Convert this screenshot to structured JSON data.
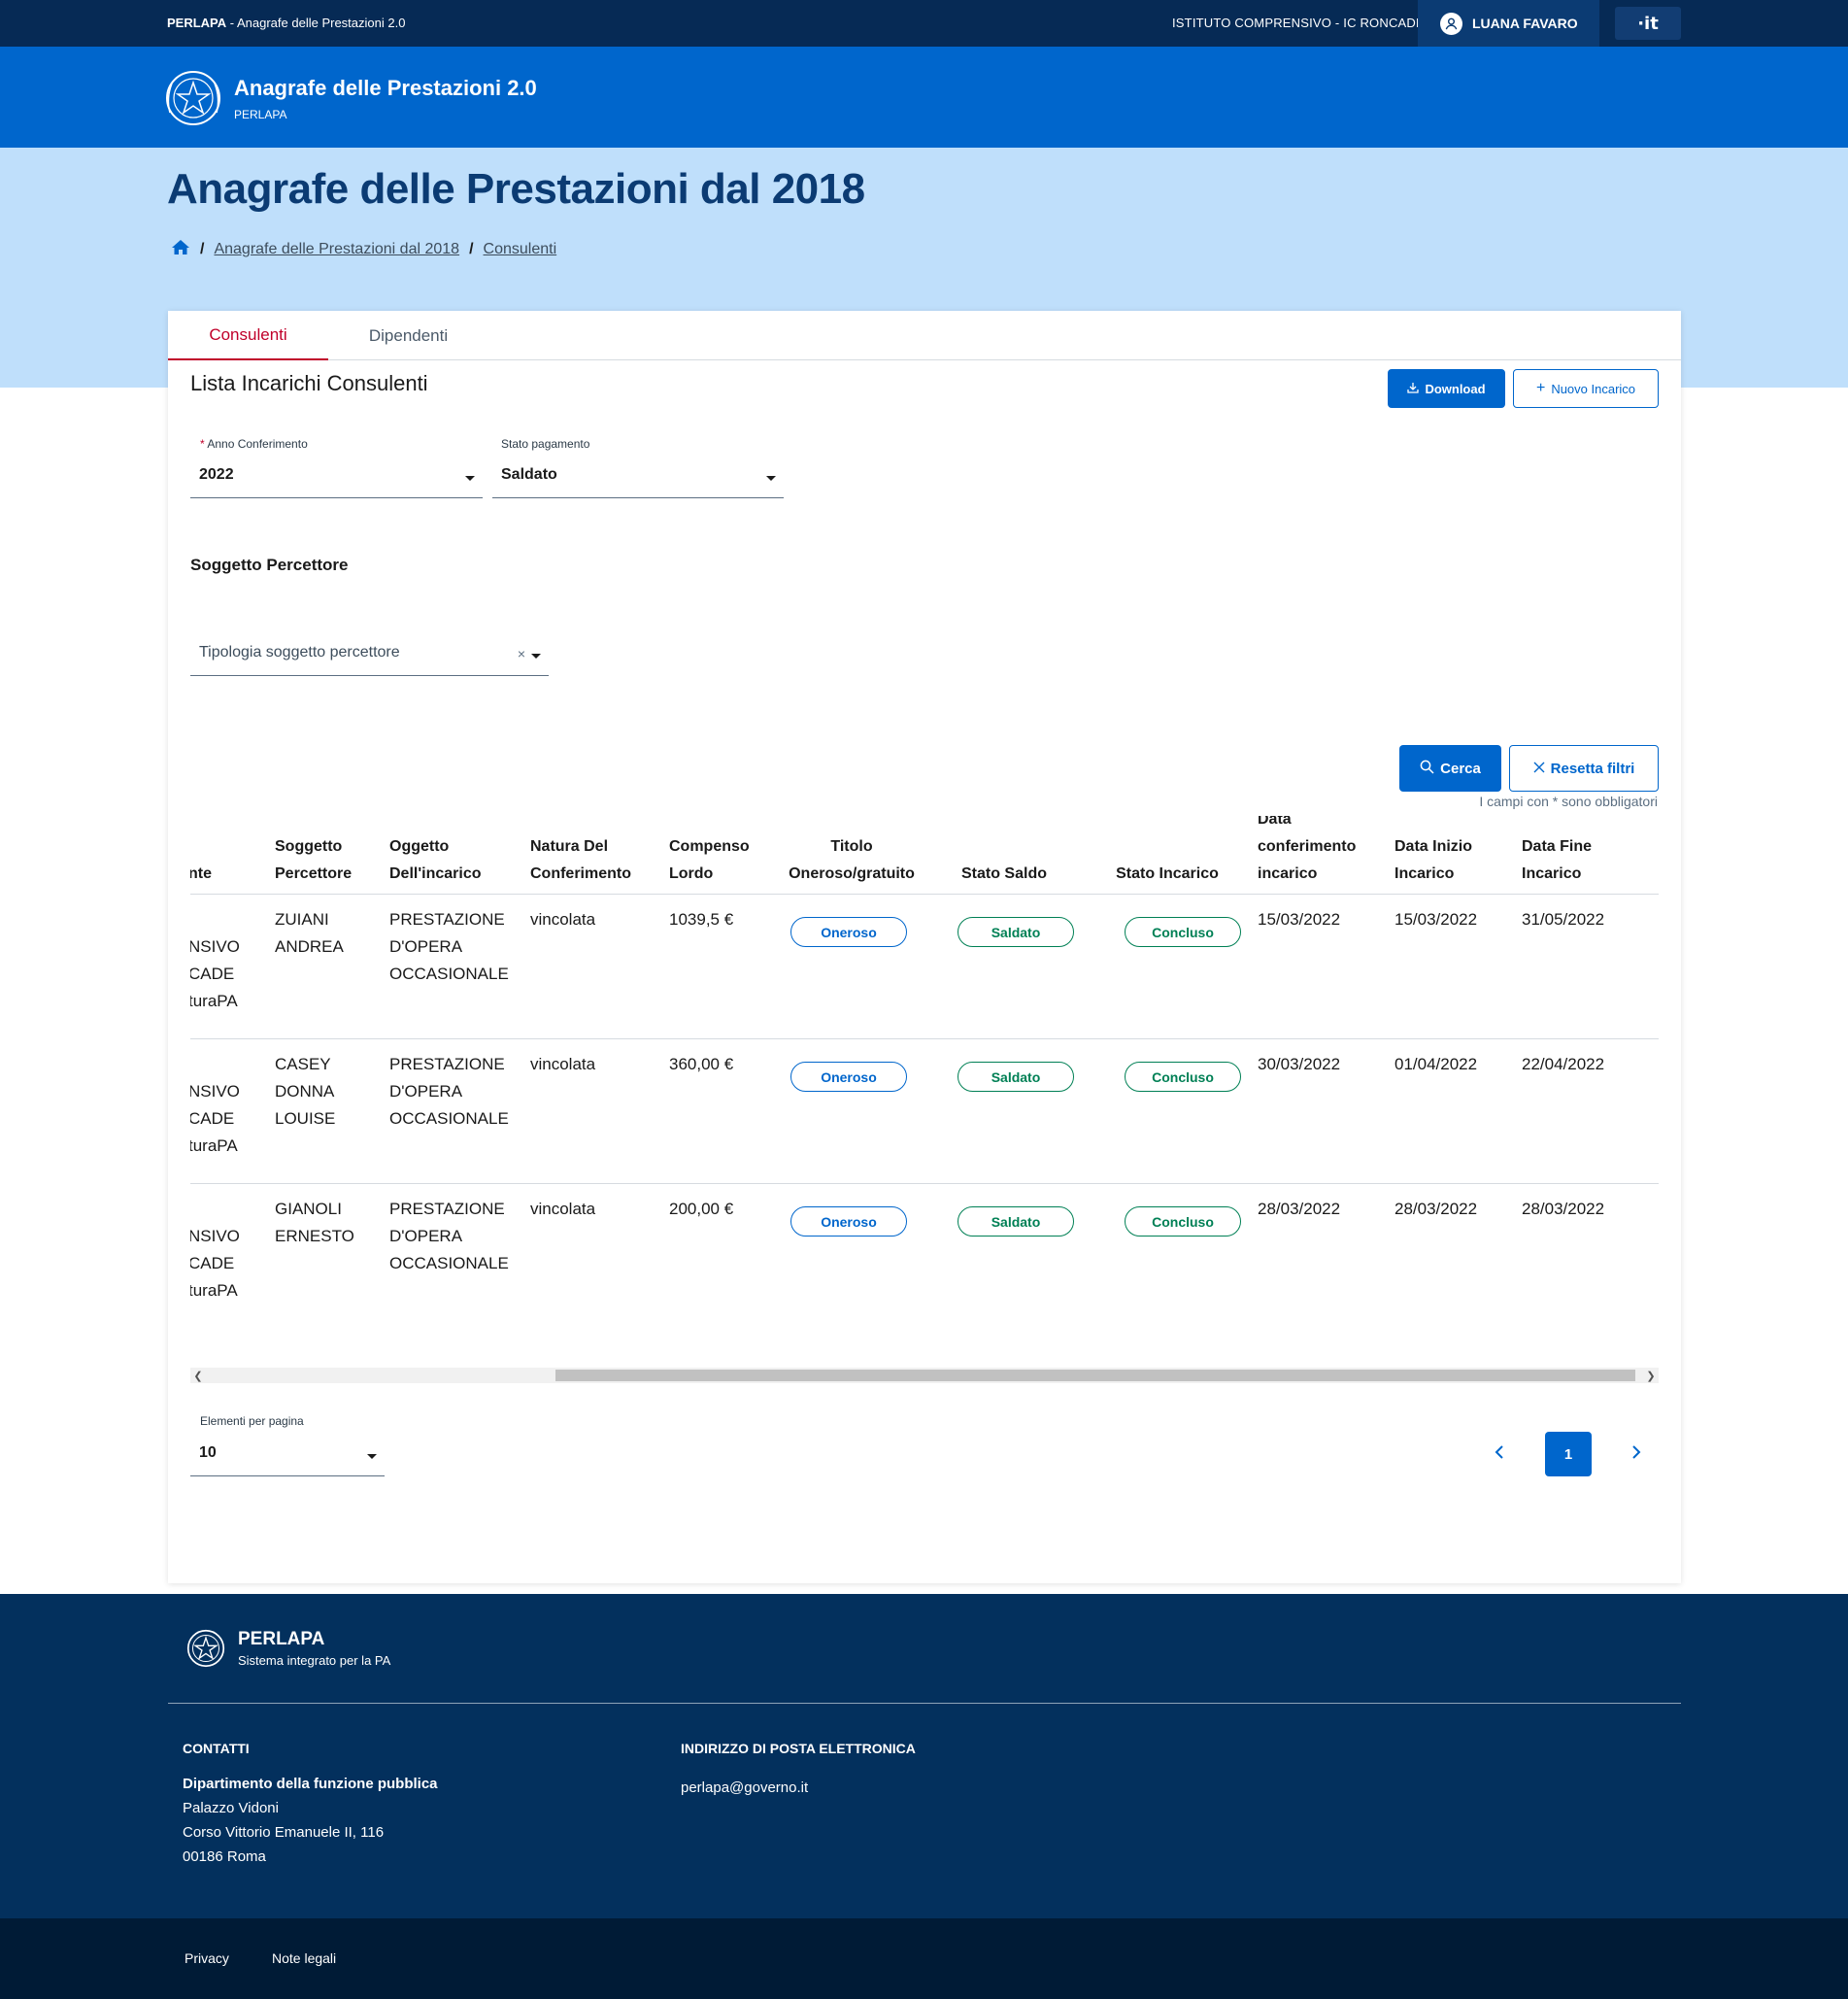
{
  "slimbar": {
    "brand_bold": "PERLAPA",
    "brand_rest": " - Anagrafe delle Prestazioni 2.0",
    "institute": "ISTITUTO COMPRENSIVO - IC RONCADE",
    "user_name": "LUANA FAVARO",
    "lang": "·it"
  },
  "header": {
    "title": "Anagrafe delle Prestazioni 2.0",
    "subtitle": "PERLAPA"
  },
  "page": {
    "title": "Anagrafe delle Prestazioni dal 2018",
    "breadcrumb": [
      "Anagrafe delle Prestazioni dal 2018",
      "Consulenti"
    ],
    "breadcrumb_sep": "/"
  },
  "tabs": [
    "Consulenti",
    "Dipendenti"
  ],
  "list": {
    "title": "Lista Incarichi Consulenti",
    "download_label": "Download",
    "new_label": "Nuovo Incarico"
  },
  "filters": {
    "anno_label": "Anno Conferimento",
    "anno_value": "2022",
    "stato_label": "Stato pagamento",
    "stato_value": "Saldato",
    "soggetto_section": "Soggetto Percettore",
    "tipologia_placeholder": "Tipologia soggetto percettore",
    "search_label": "Cerca",
    "reset_label": "Resetta filtri",
    "required_note": "I campi con * sono obbligatori"
  },
  "table": {
    "headers": [
      [
        "",
        "nte"
      ],
      [
        "Soggetto",
        "Percettore"
      ],
      [
        "Oggetto",
        "Dell'incarico"
      ],
      [
        "Natura Del",
        "Conferimento"
      ],
      [
        "Compenso",
        "Lordo"
      ],
      [
        "Titolo",
        "Oneroso/gratuito"
      ],
      [
        "Stato Saldo"
      ],
      [
        "Stato Incarico"
      ],
      [
        "Data",
        "conferimento",
        "incarico"
      ],
      [
        "Data Inizio",
        "Incarico"
      ],
      [
        "Data Fine",
        "Incarico"
      ]
    ],
    "rows": [
      {
        "ente": [
          "",
          "NSIVO",
          "CADE",
          "turaPA"
        ],
        "soggetto": [
          "ZUIANI",
          "ANDREA"
        ],
        "oggetto": [
          "PRESTAZIONE",
          "D'OPERA",
          "OCCASIONALE"
        ],
        "natura": "vincolata",
        "compenso": "1039,5 €",
        "titolo": "Oneroso",
        "stato_saldo": "Saldato",
        "stato_incarico": "Concluso",
        "data_conferimento": "15/03/2022",
        "data_inizio": "15/03/2022",
        "data_fine": "31/05/2022"
      },
      {
        "ente": [
          "",
          "NSIVO",
          "CADE",
          "turaPA"
        ],
        "soggetto": [
          "CASEY",
          "DONNA",
          "LOUISE"
        ],
        "oggetto": [
          "PRESTAZIONE",
          "D'OPERA",
          "OCCASIONALE"
        ],
        "natura": "vincolata",
        "compenso": "360,00 €",
        "titolo": "Oneroso",
        "stato_saldo": "Saldato",
        "stato_incarico": "Concluso",
        "data_conferimento": "30/03/2022",
        "data_inizio": "01/04/2022",
        "data_fine": "22/04/2022"
      },
      {
        "ente": [
          "",
          "NSIVO",
          "CADE",
          "turaPA"
        ],
        "soggetto": [
          "GIANOLI",
          "ERNESTO"
        ],
        "oggetto": [
          "PRESTAZIONE",
          "D'OPERA",
          "OCCASIONALE"
        ],
        "natura": "vincolata",
        "compenso": "200,00 €",
        "titolo": "Oneroso",
        "stato_saldo": "Saldato",
        "stato_incarico": "Concluso",
        "data_conferimento": "28/03/2022",
        "data_inizio": "28/03/2022",
        "data_fine": "28/03/2022"
      }
    ]
  },
  "pagination": {
    "per_page_label": "Elementi per pagina",
    "per_page_value": "10",
    "current_page": "1"
  },
  "footer": {
    "brand": "PERLAPA",
    "subtitle": "Sistema integrato per la PA",
    "contacts_heading": "CONTATTI",
    "contacts_org": "Dipartimento della funzione pubblica",
    "contacts_lines": [
      "Palazzo Vidoni",
      "Corso Vittorio Emanuele II, 116",
      "00186 Roma"
    ],
    "email_heading": "INDIRIZZO DI POSTA ELETTRONICA",
    "email": "perlapa@governo.it",
    "links": [
      "Privacy",
      "Note legali"
    ]
  },
  "colors": {
    "primary": "#0066cc",
    "dark_navy": "#062a55",
    "band": "#bfdffb",
    "active_tab": "#c0002a",
    "success": "#008055"
  },
  "icons": [
    "user-icon",
    "emblem-icon",
    "home-icon",
    "download-icon",
    "plus-icon",
    "search-icon",
    "close-icon",
    "chevron-left-icon",
    "chevron-right-icon"
  ]
}
